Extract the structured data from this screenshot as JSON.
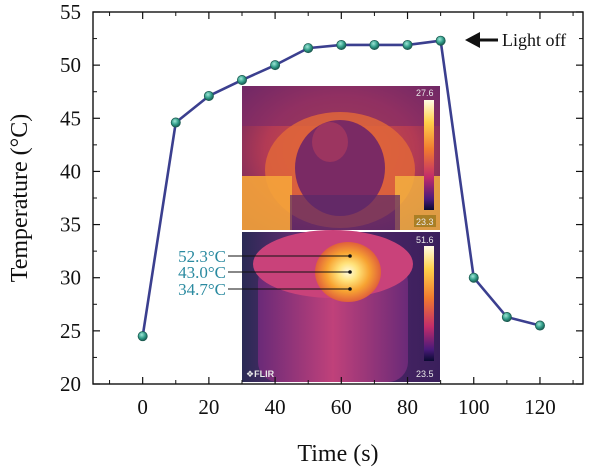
{
  "chart_data": {
    "type": "line",
    "xlabel": "Time (s)",
    "ylabel": "Temperature (°C)",
    "xlim": [
      -15,
      133
    ],
    "ylim": [
      20,
      55
    ],
    "x_ticks": [
      0,
      20,
      40,
      60,
      80,
      100,
      120
    ],
    "y_ticks": [
      20,
      25,
      30,
      35,
      40,
      45,
      50,
      55
    ],
    "grid": false,
    "series": [
      {
        "x": [
          0,
          10,
          20,
          30,
          40,
          50,
          60,
          70,
          80,
          90,
          100,
          110,
          120
        ],
        "values": [
          24.5,
          44.6,
          47.1,
          48.6,
          50.0,
          51.6,
          51.9,
          51.9,
          51.9,
          52.3,
          30.0,
          26.3,
          25.5
        ],
        "line_color": "#3b3f8f",
        "marker_color": "#2e9a86"
      }
    ],
    "annotations": [
      {
        "text": "Light off",
        "x": 90,
        "y": 52.3
      }
    ]
  },
  "insets": {
    "top": {
      "scale_max": "27.6",
      "scale_min": "23.3"
    },
    "bottom": {
      "scale_max": "51.6",
      "scale_min": "23.5",
      "brand": "❖FLIR",
      "callouts": [
        "52.3°C",
        "43.0°C",
        "34.7°C"
      ]
    }
  },
  "colors": {
    "callout": "#2a8aa0",
    "axis": "#111111"
  }
}
